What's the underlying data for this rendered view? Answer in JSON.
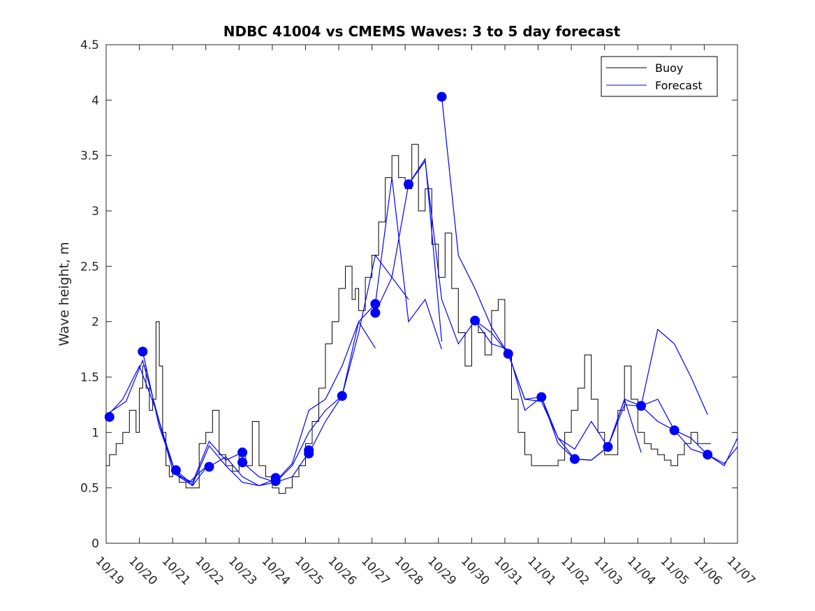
{
  "chart_data": {
    "type": "line",
    "title": "NDBC 41004 vs CMEMS Waves: 3 to 5 day forecast",
    "xlabel": "",
    "ylabel": "Wave height, m",
    "xlim": [
      0,
      19
    ],
    "ylim": [
      0,
      4.5
    ],
    "yticks": [
      0,
      0.5,
      1,
      1.5,
      2,
      2.5,
      3,
      3.5,
      4,
      4.5
    ],
    "ytick_labels": [
      "0",
      "0.5",
      "1",
      "1.5",
      "2",
      "2.5",
      "3",
      "3.5",
      "4",
      "4.5"
    ],
    "xtick_labels": [
      "10/19",
      "10/20",
      "10/21",
      "10/22",
      "10/23",
      "10/24",
      "10/25",
      "10/26",
      "10/27",
      "10/28",
      "10/29",
      "10/30",
      "10/31",
      "11/01",
      "11/02",
      "11/03",
      "11/04",
      "11/05",
      "11/06",
      "11/07"
    ],
    "legend": {
      "position": "top-right",
      "entries": [
        "Buoy",
        "Forecast"
      ]
    },
    "colors": {
      "buoy": "#000000",
      "forecast": "#0000ff"
    },
    "series": [
      {
        "name": "Buoy",
        "x": [
          0.0,
          0.1,
          0.3,
          0.5,
          0.7,
          0.9,
          1.0,
          1.1,
          1.2,
          1.3,
          1.4,
          1.5,
          1.6,
          1.7,
          1.8,
          1.9,
          2.0,
          2.2,
          2.4,
          2.6,
          2.8,
          3.0,
          3.2,
          3.4,
          3.6,
          3.8,
          4.0,
          4.2,
          4.4,
          4.6,
          4.8,
          5.0,
          5.2,
          5.4,
          5.6,
          5.8,
          6.0,
          6.2,
          6.4,
          6.6,
          6.8,
          7.0,
          7.2,
          7.4,
          7.5,
          7.6,
          7.8,
          8.0,
          8.2,
          8.4,
          8.6,
          8.8,
          9.0,
          9.2,
          9.4,
          9.6,
          9.8,
          10.0,
          10.2,
          10.4,
          10.6,
          10.8,
          11.0,
          11.2,
          11.4,
          11.6,
          11.8,
          12.0,
          12.2,
          12.4,
          12.6,
          12.8,
          13.0,
          13.2,
          13.4,
          13.6,
          13.8,
          14.0,
          14.2,
          14.4,
          14.6,
          14.8,
          15.0,
          15.2,
          15.4,
          15.6,
          15.8,
          16.0,
          16.2,
          16.4,
          16.6,
          16.8,
          17.0,
          17.2,
          17.4,
          17.6,
          17.8,
          18.0,
          18.2
        ],
        "values": [
          0.7,
          0.8,
          0.9,
          1.0,
          1.2,
          1.0,
          1.4,
          1.6,
          1.4,
          1.2,
          1.3,
          2.0,
          1.6,
          1.0,
          0.7,
          0.6,
          0.65,
          0.55,
          0.5,
          0.5,
          0.9,
          1.0,
          1.2,
          0.8,
          0.7,
          0.65,
          0.8,
          0.7,
          1.1,
          0.7,
          0.6,
          0.5,
          0.45,
          0.5,
          0.6,
          0.7,
          0.9,
          1.1,
          1.4,
          1.8,
          2.0,
          2.3,
          2.5,
          2.2,
          2.3,
          2.1,
          2.4,
          2.6,
          2.9,
          3.3,
          3.5,
          3.3,
          3.2,
          3.6,
          3.0,
          3.2,
          2.7,
          2.4,
          2.8,
          2.3,
          1.9,
          1.6,
          2.0,
          1.9,
          1.7,
          2.1,
          2.2,
          1.7,
          1.3,
          1.0,
          0.8,
          0.7,
          0.7,
          0.7,
          0.7,
          0.75,
          1.0,
          1.2,
          1.4,
          1.7,
          1.3,
          1.0,
          0.8,
          0.8,
          1.2,
          1.6,
          1.3,
          1.0,
          0.9,
          0.85,
          0.8,
          0.75,
          0.7,
          0.8,
          0.9,
          1.0,
          0.9,
          0.9,
          0.9
        ]
      },
      {
        "name": "Forecast",
        "segments": [
          {
            "x": [
              0.0,
              0.5,
              1.0,
              1.5,
              2.0,
              2.5,
              3.0
            ],
            "values": [
              1.14,
              1.3,
              1.6,
              1.2,
              0.66,
              0.55,
              0.69
            ]
          },
          {
            "x": [
              0.1,
              0.6,
              1.1,
              1.6,
              2.1,
              2.6,
              3.1
            ],
            "values": [
              1.18,
              1.28,
              1.65,
              1.1,
              0.62,
              0.52,
              0.72
            ]
          },
          {
            "x": [
              1.1,
              1.6,
              2.1,
              2.6,
              3.1,
              3.6,
              4.1
            ],
            "values": [
              1.73,
              1.05,
              0.62,
              0.55,
              0.92,
              0.75,
              0.82
            ]
          },
          {
            "x": [
              2.1,
              2.6,
              3.1,
              3.6,
              4.1,
              4.6,
              5.1
            ],
            "values": [
              0.66,
              0.53,
              0.88,
              0.7,
              0.55,
              0.52,
              0.58
            ]
          },
          {
            "x": [
              3.1,
              3.6,
              4.1,
              4.6,
              5.1,
              5.6,
              6.1
            ],
            "values": [
              0.69,
              0.78,
              0.6,
              0.52,
              0.55,
              0.6,
              0.82
            ]
          },
          {
            "x": [
              4.1,
              4.6,
              5.1,
              5.6,
              6.1,
              6.6,
              7.1
            ],
            "values": [
              0.73,
              0.6,
              0.55,
              0.7,
              1.0,
              1.2,
              1.33
            ]
          },
          {
            "x": [
              5.1,
              5.6,
              6.1,
              6.6,
              7.1,
              7.6,
              8.1
            ],
            "values": [
              0.56,
              0.72,
              1.2,
              1.3,
              1.6,
              2.0,
              1.76
            ]
          },
          {
            "x": [
              6.1,
              6.6,
              7.1,
              7.6,
              8.1,
              8.6,
              9.1
            ],
            "values": [
              0.81,
              1.1,
              1.33,
              1.9,
              2.6,
              2.4,
              2.2
            ]
          },
          {
            "x": [
              7.1,
              7.6,
              8.1,
              8.6,
              9.1,
              9.6,
              10.1
            ],
            "values": [
              1.33,
              2.0,
              2.16,
              3.3,
              2.0,
              2.2,
              1.75
            ]
          },
          {
            "x": [
              8.1,
              8.6,
              9.1,
              9.6,
              10.1
            ],
            "values": [
              2.08,
              2.4,
              3.24,
              3.47,
              1.82
            ]
          },
          {
            "x": [
              9.1,
              9.6,
              10.1,
              10.6,
              11.1,
              11.6,
              12.1
            ],
            "values": [
              3.24,
              3.45,
              2.2,
              1.8,
              2.01,
              1.9,
              1.71
            ]
          },
          {
            "x": [
              10.1,
              10.6,
              11.1,
              11.6,
              12.1,
              12.6,
              13.1
            ],
            "values": [
              4.03,
              2.6,
              2.3,
              1.95,
              1.71,
              1.3,
              1.32
            ]
          },
          {
            "x": [
              11.1,
              11.6,
              12.1,
              12.6,
              13.1,
              13.6,
              14.1
            ],
            "values": [
              2.01,
              1.8,
              1.75,
              1.2,
              1.32,
              0.95,
              0.76
            ]
          },
          {
            "x": [
              12.1,
              12.6,
              13.1,
              13.6,
              14.1,
              14.6,
              15.1
            ],
            "values": [
              1.71,
              1.3,
              1.28,
              0.95,
              0.85,
              1.1,
              0.87
            ]
          },
          {
            "x": [
              13.1,
              13.6,
              14.1,
              14.6,
              15.1,
              15.6,
              16.1
            ],
            "values": [
              1.32,
              0.9,
              0.76,
              0.75,
              0.87,
              1.3,
              0.82
            ]
          },
          {
            "x": [
              14.1,
              14.6,
              15.1,
              15.6,
              16.1,
              16.6,
              17.1,
              17.6,
              18.1
            ],
            "values": [
              0.76,
              0.75,
              0.87,
              1.25,
              1.24,
              1.93,
              1.8,
              1.5,
              1.16
            ]
          },
          {
            "x": [
              15.1,
              15.6,
              16.1,
              16.6,
              17.1,
              17.6,
              18.1,
              18.6,
              19.0
            ],
            "values": [
              0.87,
              1.3,
              1.24,
              1.3,
              1.02,
              0.95,
              0.8,
              0.7,
              0.95
            ]
          },
          {
            "x": [
              16.1,
              16.6,
              17.1,
              17.6,
              18.1,
              18.6,
              19.0
            ],
            "values": [
              1.24,
              1.1,
              1.02,
              0.85,
              0.8,
              0.72,
              0.87
            ]
          }
        ],
        "markers": {
          "x": [
            0.1,
            1.1,
            2.1,
            3.1,
            4.1,
            4.1,
            5.1,
            5.1,
            6.1,
            6.1,
            7.1,
            8.1,
            8.1,
            9.1,
            10.1,
            11.1,
            12.1,
            13.1,
            14.1,
            15.1,
            16.1,
            17.1,
            18.1
          ],
          "values": [
            1.14,
            1.73,
            0.66,
            0.69,
            0.73,
            0.82,
            0.56,
            0.59,
            0.81,
            0.84,
            1.33,
            2.16,
            2.08,
            3.24,
            4.03,
            2.01,
            1.71,
            1.32,
            0.76,
            0.87,
            1.24,
            1.02,
            0.8
          ]
        }
      }
    ]
  }
}
